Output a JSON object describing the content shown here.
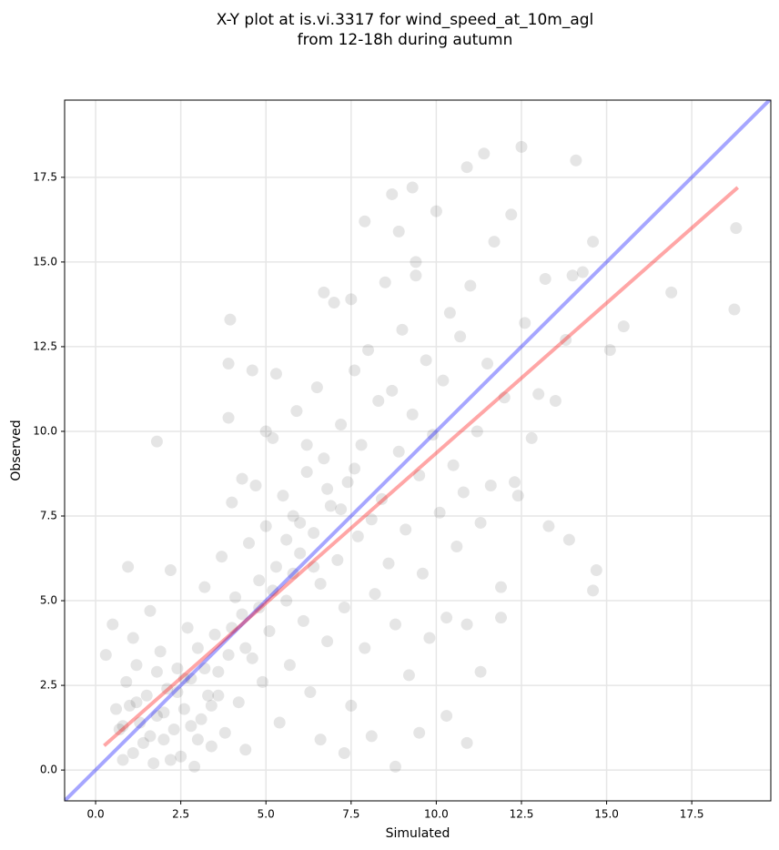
{
  "chart_data": {
    "type": "scatter",
    "title": [
      "X-Y plot at is.vi.3317 for wind_speed_at_10m_agl",
      "from 12-18h during autumn"
    ],
    "x_label": "Simulated",
    "y_label": "Observed",
    "xlim": [
      -0.91,
      19.82
    ],
    "ylim": [
      -0.91,
      19.78
    ],
    "xticks": [
      {
        "value": 0,
        "label": "0.0"
      },
      2.5,
      {
        "value": 5,
        "label": "5.0"
      },
      7.5,
      {
        "value": 10,
        "label": "10.0"
      },
      12.5,
      {
        "value": 15,
        "label": "15.0"
      },
      17.5
    ],
    "yticks": [
      {
        "value": 0,
        "label": "0.0"
      },
      2.5,
      {
        "value": 5,
        "label": "5.0"
      },
      7.5,
      {
        "value": 10,
        "label": "10.0"
      },
      12.5,
      {
        "value": 15,
        "label": "15.0"
      },
      17.5
    ],
    "grid": true,
    "series": [
      {
        "color": "#000000",
        "x": [
          0.3,
          0.5,
          0.6,
          0.7,
          0.8,
          0.9,
          1.0,
          1.1,
          1.2,
          1.3,
          1.4,
          1.5,
          1.6,
          1.7,
          1.8,
          1.9,
          2.0,
          2.1,
          2.2,
          2.3,
          2.4,
          2.5,
          2.6,
          2.7,
          2.8,
          2.9,
          3.0,
          3.1,
          3.2,
          3.3,
          3.4,
          3.5,
          3.6,
          3.7,
          3.8,
          3.9,
          4.0,
          4.1,
          4.2,
          4.3,
          4.4,
          4.5,
          4.6,
          4.7,
          4.8,
          4.9,
          5.0,
          5.1,
          5.2,
          5.3,
          5.4,
          5.5,
          5.6,
          5.7,
          5.8,
          5.9,
          6.0,
          6.1,
          6.2,
          6.3,
          6.4,
          6.5,
          6.6,
          6.7,
          6.8,
          6.9,
          7.0,
          7.1,
          7.2,
          7.3,
          7.4,
          7.5,
          7.6,
          7.7,
          7.8,
          7.9,
          8.0,
          8.1,
          8.2,
          8.3,
          8.4,
          8.5,
          8.6,
          8.7,
          8.8,
          8.9,
          9.0,
          9.1,
          9.2,
          9.3,
          9.4,
          9.5,
          9.6,
          9.7,
          9.8,
          9.9,
          10.0,
          10.1,
          10.2,
          10.3,
          10.4,
          10.5,
          10.6,
          10.7,
          10.8,
          10.9,
          11.0,
          11.2,
          11.3,
          11.5,
          11.6,
          11.7,
          11.9,
          12.0,
          12.2,
          12.3,
          12.6,
          12.8,
          13.0,
          13.2,
          13.5,
          13.8,
          14.0,
          14.3,
          14.6,
          0.8,
          1.2,
          1.6,
          2.0,
          2.4,
          2.8,
          3.2,
          3.6,
          4.0,
          4.4,
          4.8,
          5.2,
          5.6,
          6.0,
          6.4,
          6.8,
          7.2,
          7.6,
          2.2,
          3.0,
          1.1,
          1.8,
          2.6,
          3.4,
          5.8,
          6.2,
          4.3,
          5.0,
          3.9,
          3.9,
          4.6,
          5.3,
          6.7,
          7.5,
          8.9,
          9.4,
          12.5,
          11.4,
          14.1,
          10.9,
          8.7,
          9.3,
          7.9,
          1.8,
          3.95,
          0.95,
          8.8,
          10.9,
          10.3,
          13.9,
          13.3,
          15.1,
          15.5,
          18.8,
          18.75,
          16.9,
          14.7,
          14.6,
          11.9,
          11.3,
          12.4,
          8.1,
          9.5,
          7.3,
          6.6
        ],
        "values": [
          3.4,
          4.3,
          1.8,
          1.2,
          0.3,
          2.6,
          1.9,
          0.5,
          3.1,
          1.4,
          0.8,
          2.2,
          4.7,
          0.2,
          1.6,
          3.5,
          0.9,
          2.4,
          5.9,
          1.2,
          3.0,
          0.4,
          1.8,
          4.2,
          2.7,
          0.1,
          3.6,
          1.5,
          5.4,
          2.2,
          0.7,
          4.0,
          2.9,
          6.3,
          1.1,
          3.4,
          7.9,
          5.1,
          2.0,
          4.6,
          0.6,
          6.7,
          3.3,
          8.4,
          5.6,
          2.6,
          7.2,
          4.1,
          9.8,
          6.0,
          1.4,
          8.1,
          5.0,
          3.1,
          7.5,
          10.6,
          6.4,
          4.4,
          8.8,
          2.3,
          7.0,
          11.3,
          5.5,
          9.2,
          3.8,
          7.8,
          13.8,
          6.2,
          10.2,
          4.8,
          8.5,
          1.9,
          11.8,
          6.9,
          9.6,
          3.6,
          12.4,
          7.4,
          5.2,
          10.9,
          8.0,
          14.4,
          6.1,
          11.2,
          4.3,
          9.4,
          13.0,
          7.1,
          2.8,
          10.5,
          15.0,
          8.7,
          5.8,
          12.1,
          3.9,
          9.9,
          16.5,
          7.6,
          11.5,
          4.5,
          13.5,
          9.0,
          6.6,
          12.8,
          8.2,
          4.3,
          14.3,
          10.0,
          2.9,
          12.0,
          8.4,
          15.6,
          5.4,
          11.0,
          16.4,
          8.5,
          13.2,
          9.8,
          11.1,
          14.5,
          10.9,
          12.7,
          14.6,
          14.7,
          15.6,
          1.3,
          2.0,
          1.0,
          1.7,
          2.3,
          1.3,
          3.0,
          2.2,
          4.2,
          3.6,
          4.8,
          5.3,
          6.8,
          7.3,
          6.0,
          8.3,
          7.7,
          8.9,
          0.3,
          0.9,
          3.9,
          2.9,
          2.7,
          1.9,
          5.8,
          9.6,
          8.6,
          10.0,
          12.0,
          10.4,
          11.8,
          11.7,
          14.1,
          13.9,
          15.9,
          14.6,
          18.4,
          18.2,
          18.0,
          17.8,
          17.0,
          17.2,
          16.2,
          9.7,
          13.3,
          6.0,
          0.1,
          0.8,
          1.6,
          6.8,
          7.2,
          12.4,
          13.1,
          16.0,
          13.6,
          14.1,
          5.9,
          5.3,
          4.5,
          7.3,
          8.1,
          1.0,
          1.1,
          0.5,
          0.9
        ]
      }
    ],
    "lines": [
      {
        "color": "#0000ff",
        "x": [
          -0.91,
          19.82
        ],
        "values": [
          -0.91,
          19.82
        ]
      },
      {
        "color": "#ff0000",
        "x": [
          0.25,
          18.85
        ],
        "values": [
          0.72,
          17.2
        ]
      }
    ]
  }
}
